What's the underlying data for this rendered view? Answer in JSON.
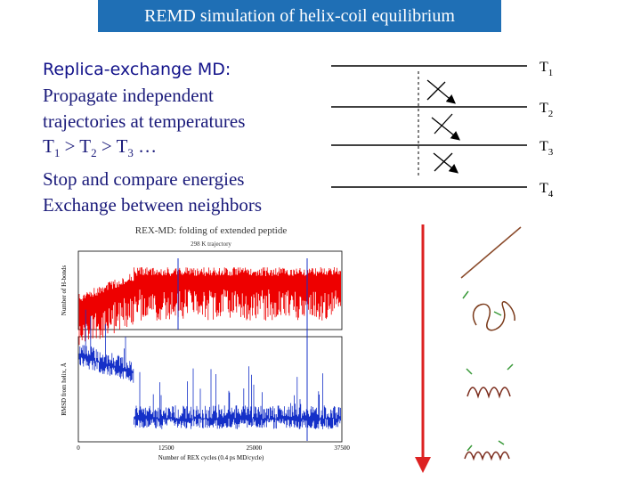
{
  "header": {
    "title": "REMD simulation of helix-coil equilibrium"
  },
  "body": {
    "heading": "Replica-exchange MD:",
    "lines": [
      "Propagate independent",
      "trajectories at temperatures"
    ],
    "inequality": [
      {
        "text": "T",
        "sub": "1"
      },
      {
        "text": " > T",
        "sub": "2"
      },
      {
        "text": " > T",
        "sub": "3"
      },
      {
        "text": " …"
      }
    ],
    "after": [
      "Stop and compare energies",
      "Exchange between neighbors"
    ]
  },
  "temperatures": [
    {
      "text": "T",
      "sub": "1"
    },
    {
      "text": "T",
      "sub": "2"
    },
    {
      "text": "T",
      "sub": "3"
    },
    {
      "text": "T",
      "sub": "4"
    }
  ],
  "plot": {
    "title": "REX-MD: folding of extended peptide",
    "subtitle": "298 K trajectory",
    "y_label_top": "Number of H-bonds",
    "y_label_bottom": "RMSD from helix, Å",
    "x_label": "Number of REX cycles (0.4 ps MD/cycle)",
    "x_ticks": [
      "0",
      "12500",
      "25000",
      "37500"
    ]
  }
}
